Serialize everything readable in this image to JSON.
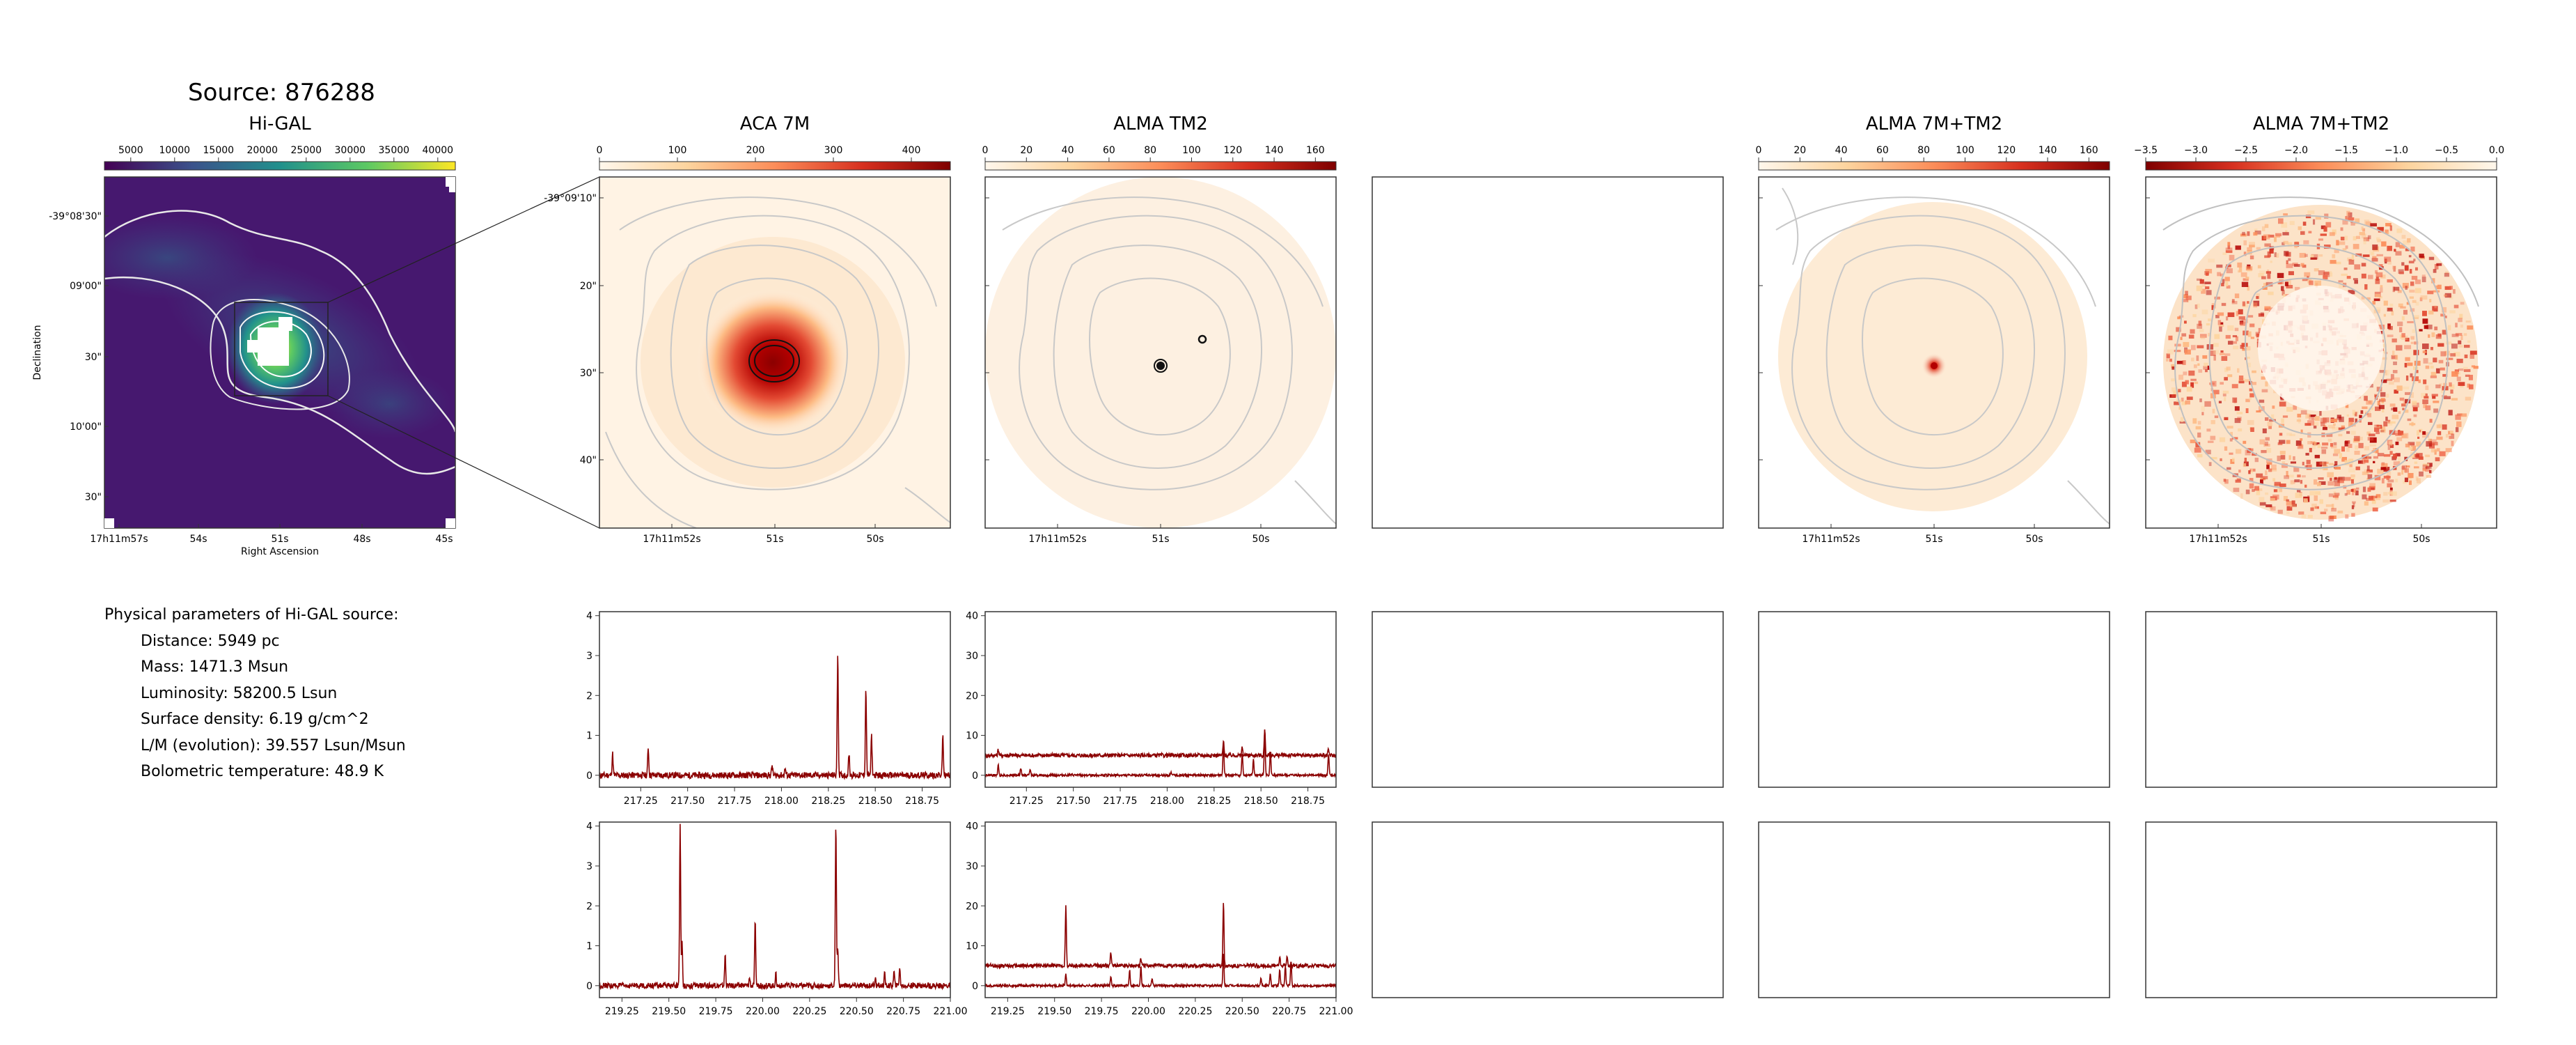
{
  "source_title": "Source: 876288",
  "physical_parameters": {
    "heading": "Physical parameters of Hi-GAL source:",
    "items": [
      "Distance: 5949 pc",
      "Mass: 1471.3 Msun",
      "Luminosity: 58200.5 Lsun",
      "Surface density: 6.19 g/cm^2",
      "L/M (evolution): 39.557 Lsun/Msun",
      "Bolometric temperature: 48.9 K"
    ]
  },
  "colors": {
    "spectrum_line": "#8b0000",
    "frame": "#333333",
    "contour_light": "#c8c8c8",
    "contour_white": "#f0f0f0"
  },
  "chart_data": [
    {
      "type": "heatmap",
      "id": "higal",
      "title": "Hi-GAL",
      "colormap": "viridis",
      "colorbar_ticks": [
        "5000",
        "10000",
        "15000",
        "20000",
        "25000",
        "30000",
        "35000",
        "40000"
      ],
      "colorbar_range": [
        2000,
        42000
      ],
      "ytick_labels": [
        "-39°08'30\"",
        "09'00\"",
        "30\"",
        "10'00\"",
        "30\""
      ],
      "xtick_labels": [
        "17h11m57s",
        "54s",
        "51s",
        "48s",
        "45s"
      ],
      "xlabel": "Right Ascension",
      "ylabel": "Declination",
      "grid": false
    },
    {
      "type": "heatmap",
      "id": "aca7m",
      "title": "ACA 7M",
      "colormap": "OrRd",
      "colorbar_ticks": [
        "0",
        "100",
        "200",
        "300",
        "400"
      ],
      "colorbar_range": [
        0,
        450
      ],
      "ytick_labels": [
        "-39°09'10\"",
        "20\"",
        "30\"",
        "40\""
      ],
      "xtick_labels": [
        "17h11m52s",
        "51s",
        "50s"
      ]
    },
    {
      "type": "heatmap",
      "id": "tm2",
      "title": "ALMA TM2",
      "colormap": "OrRd",
      "colorbar_ticks": [
        "0",
        "20",
        "40",
        "60",
        "80",
        "100",
        "120",
        "140",
        "160"
      ],
      "colorbar_range": [
        0,
        170
      ],
      "xtick_labels": [
        "17h11m52s",
        "51s",
        "50s"
      ]
    },
    {
      "type": "heatmap",
      "id": "combo",
      "title": "ALMA 7M+TM2",
      "colormap": "OrRd",
      "colorbar_ticks": [
        "0",
        "20",
        "40",
        "60",
        "80",
        "100",
        "120",
        "140",
        "160"
      ],
      "colorbar_range": [
        0,
        170
      ],
      "xtick_labels": [
        "17h11m52s",
        "51s",
        "50s"
      ]
    },
    {
      "type": "heatmap",
      "id": "combo_neg",
      "title": "ALMA 7M+TM2",
      "colormap": "OrRd_r",
      "colorbar_ticks": [
        "−3.5",
        "−3.0",
        "−2.5",
        "−2.0",
        "−1.5",
        "−1.0",
        "−0.5",
        "0.0"
      ],
      "colorbar_range": [
        -3.5,
        0.0
      ],
      "xtick_labels": [
        "17h11m52s",
        "51s",
        "50s"
      ]
    },
    {
      "type": "line",
      "id": "spec_aca_lower",
      "xlim": [
        217.03,
        218.9
      ],
      "ylim": [
        -0.3,
        4.1
      ],
      "xticks": [
        "217.25",
        "217.50",
        "217.75",
        "218.00",
        "218.25",
        "218.50",
        "218.75"
      ],
      "yticks": [
        "0",
        "1",
        "2",
        "3",
        "4"
      ],
      "series": [
        {
          "values": {
            "baseline": 0,
            "noise": 0.08,
            "peaks": [
              [
                217.1,
                0.55
              ],
              [
                217.29,
                0.7
              ],
              [
                217.95,
                0.25
              ],
              [
                218.02,
                0.18
              ],
              [
                218.3,
                3.1
              ],
              [
                218.36,
                0.55
              ],
              [
                218.45,
                2.2
              ],
              [
                218.48,
                1.0
              ],
              [
                218.86,
                1.0
              ]
            ]
          }
        }
      ]
    },
    {
      "type": "line",
      "id": "spec_tm2_lower",
      "xlim": [
        217.03,
        218.9
      ],
      "ylim": [
        -3,
        41
      ],
      "xticks": [
        "217.25",
        "217.50",
        "217.75",
        "218.00",
        "218.25",
        "218.50",
        "218.75"
      ],
      "yticks": [
        "0",
        "10",
        "20",
        "30",
        "40"
      ],
      "series": [
        {
          "values": {
            "baseline": 5,
            "noise": 0.5,
            "peaks": [
              [
                217.1,
                1.5
              ],
              [
                218.3,
                3.5
              ],
              [
                218.4,
                2.0
              ],
              [
                218.52,
                6.5
              ],
              [
                218.86,
                1.5
              ]
            ]
          }
        },
        {
          "values": {
            "baseline": 0,
            "noise": 0.3,
            "peaks": [
              [
                217.1,
                2.5
              ],
              [
                217.22,
                1.8
              ],
              [
                217.27,
                1.5
              ],
              [
                218.02,
                0.8
              ],
              [
                218.3,
                8.0
              ],
              [
                218.4,
                5.5
              ],
              [
                218.46,
                4.0
              ],
              [
                218.52,
                11.5
              ],
              [
                218.55,
                6.0
              ],
              [
                218.86,
                5.5
              ]
            ]
          }
        }
      ]
    },
    {
      "type": "line",
      "id": "spec_aca_upper",
      "xlim": [
        219.13,
        221.0
      ],
      "ylim": [
        -0.3,
        4.1
      ],
      "xticks": [
        "219.25",
        "219.50",
        "219.75",
        "220.00",
        "220.25",
        "220.50",
        "220.75",
        "221.00"
      ],
      "yticks": [
        "0",
        "1",
        "2",
        "3",
        "4"
      ],
      "series": [
        {
          "values": {
            "baseline": 0,
            "noise": 0.07,
            "peaks": [
              [
                219.56,
                4.1
              ],
              [
                219.57,
                1.1
              ],
              [
                219.8,
                0.8
              ],
              [
                219.93,
                0.2
              ],
              [
                219.96,
                1.6
              ],
              [
                220.07,
                0.3
              ],
              [
                220.39,
                4.1
              ],
              [
                220.4,
                1.0
              ],
              [
                220.6,
                0.2
              ],
              [
                220.65,
                0.3
              ],
              [
                220.7,
                0.35
              ],
              [
                220.73,
                0.45
              ]
            ]
          }
        }
      ]
    },
    {
      "type": "line",
      "id": "spec_tm2_upper",
      "xlim": [
        219.13,
        221.0
      ],
      "ylim": [
        -3,
        41
      ],
      "xticks": [
        "219.25",
        "219.50",
        "219.75",
        "220.00",
        "220.25",
        "220.50",
        "220.75",
        "221.00"
      ],
      "yticks": [
        "0",
        "10",
        "20",
        "30",
        "40"
      ],
      "series": [
        {
          "values": {
            "baseline": 5,
            "noise": 0.5,
            "peaks": [
              [
                219.56,
                15.0
              ],
              [
                219.8,
                3.5
              ],
              [
                219.96,
                2.0
              ],
              [
                220.4,
                16.0
              ],
              [
                220.7,
                2.0
              ],
              [
                220.74,
                2.5
              ]
            ]
          }
        },
        {
          "values": {
            "baseline": 0,
            "noise": 0.3,
            "peaks": [
              [
                219.56,
                3.0
              ],
              [
                219.8,
                2.5
              ],
              [
                219.9,
                4.0
              ],
              [
                219.96,
                5.0
              ],
              [
                220.02,
                2.0
              ],
              [
                220.4,
                8.0
              ],
              [
                220.6,
                2.0
              ],
              [
                220.65,
                3.0
              ],
              [
                220.7,
                4.0
              ],
              [
                220.73,
                5.0
              ],
              [
                220.76,
                6.0
              ]
            ]
          }
        }
      ]
    }
  ]
}
